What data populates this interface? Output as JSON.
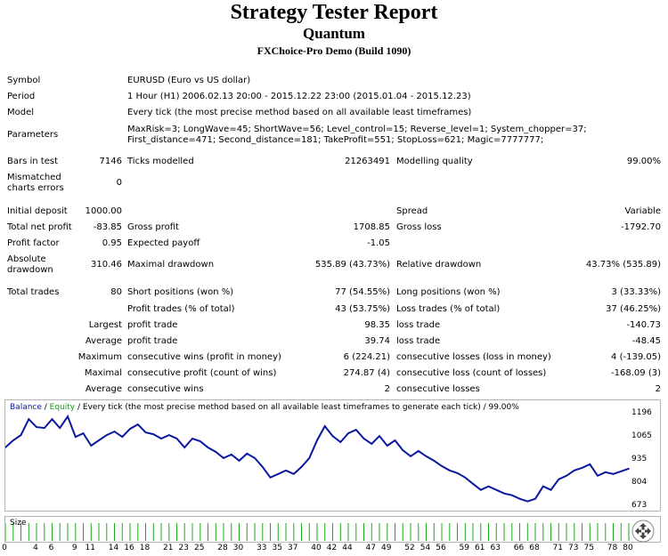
{
  "report": {
    "title": "Strategy Tester Report",
    "expert": "Quantum",
    "server": "FXChoice-Pro Demo (Build 1090)"
  },
  "info": {
    "symbol_label": "Symbol",
    "symbol_value": "EURUSD (Euro vs US dollar)",
    "period_label": "Period",
    "period_value": "1 Hour (H1) 2006.02.13 20:00 - 2015.12.22 23:00 (2015.01.04 - 2015.12.23)",
    "model_label": "Model",
    "model_value": "Every tick (the most precise method based on all available least timeframes)",
    "parameters_label": "Parameters",
    "parameters_value": "MaxRisk=3; LongWave=45; ShortWave=56; Level_control=15; Reverse_level=1; System_chopper=37; First_distance=471; Second_distance=181; TakeProfit=551; StopLoss=621; Magic=7777777;"
  },
  "stats": {
    "bars_label": "Bars in test",
    "bars_value": "7146",
    "ticks_label": "Ticks modelled",
    "ticks_value": "21263491",
    "quality_label": "Modelling quality",
    "quality_value": "99.00%",
    "mismatch_label": "Mismatched charts errors",
    "mismatch_value": "0",
    "deposit_label": "Initial deposit",
    "deposit_value": "1000.00",
    "spread_label": "Spread",
    "spread_value": "Variable",
    "netprofit_label": "Total net profit",
    "netprofit_value": "-83.85",
    "grossprofit_label": "Gross profit",
    "grossprofit_value": "1708.85",
    "grossloss_label": "Gross loss",
    "grossloss_value": "-1792.70",
    "pf_label": "Profit factor",
    "pf_value": "0.95",
    "payoff_label": "Expected payoff",
    "payoff_value": "-1.05",
    "absdd_label": "Absolute drawdown",
    "absdd_value": "310.46",
    "maxdd_label": "Maximal drawdown",
    "maxdd_value": "535.89 (43.73%)",
    "reldd_label": "Relative drawdown",
    "reldd_value": "43.73% (535.89)",
    "trades_label": "Total trades",
    "trades_value": "80",
    "short_label": "Short positions (won %)",
    "short_value": "77 (54.55%)",
    "long_label": "Long positions (won %)",
    "long_value": "3 (33.33%)",
    "profittrades_label": "Profit trades (% of total)",
    "profittrades_value": "43 (53.75%)",
    "losstrades_label": "Loss trades (% of total)",
    "losstrades_value": "37 (46.25%)",
    "largest_label": "Largest",
    "largest_profit_label": "profit trade",
    "largest_profit_value": "98.35",
    "largest_loss_label": "loss trade",
    "largest_loss_value": "-140.73",
    "average_label": "Average",
    "average_profit_label": "profit trade",
    "average_profit_value": "39.74",
    "average_loss_label": "loss trade",
    "average_loss_value": "-48.45",
    "maximum_label": "Maximum",
    "max_wins_label": "consecutive wins (profit in money)",
    "max_wins_value": "6 (224.21)",
    "max_losses_label": "consecutive losses (loss in money)",
    "max_losses_value": "4 (-139.05)",
    "maximal_label": "Maximal",
    "maximal_profit_label": "consecutive profit (count of wins)",
    "maximal_profit_value": "274.87 (4)",
    "maximal_loss_label": "consecutive loss (count of losses)",
    "maximal_loss_value": "-168.09 (3)",
    "avg2_label": "Average",
    "avg_wins_label": "consecutive wins",
    "avg_wins_value": "2",
    "avg_losses_label": "consecutive losses",
    "avg_losses_value": "2"
  },
  "chart": {
    "caption_balance": "Balance",
    "caption_sep": " / ",
    "caption_equity": "Equity",
    "caption_rest": " / Every tick (the most precise method based on all available least timeframes to generate each tick) / 99.00%",
    "size_label": "Size",
    "balance_color": "#0a18a0",
    "equity_color": "#1a9a1a",
    "volume_color": "#22aa22"
  },
  "chart_data": {
    "type": "line",
    "x": [
      0,
      1,
      2,
      3,
      4,
      5,
      6,
      7,
      8,
      9,
      10,
      11,
      12,
      13,
      14,
      15,
      16,
      17,
      18,
      19,
      20,
      21,
      22,
      23,
      24,
      25,
      26,
      27,
      28,
      29,
      30,
      31,
      32,
      33,
      34,
      35,
      36,
      37,
      38,
      39,
      40,
      41,
      42,
      43,
      44,
      45,
      46,
      47,
      48,
      49,
      50,
      51,
      52,
      53,
      54,
      55,
      56,
      57,
      58,
      59,
      60,
      61,
      62,
      63,
      64,
      65,
      66,
      67,
      68,
      69,
      70,
      71,
      72,
      73,
      74,
      75,
      76,
      77,
      78,
      79,
      80
    ],
    "series": [
      {
        "name": "Balance",
        "values": [
          1010,
          1050,
          1080,
          1170,
          1125,
          1120,
          1170,
          1120,
          1185,
          1070,
          1090,
          1020,
          1050,
          1080,
          1100,
          1070,
          1115,
          1140,
          1095,
          1085,
          1060,
          1080,
          1060,
          1010,
          1060,
          1045,
          1010,
          985,
          950,
          970,
          935,
          975,
          950,
          900,
          840,
          860,
          880,
          860,
          900,
          950,
          1050,
          1130,
          1075,
          1040,
          1090,
          1110,
          1060,
          1030,
          1075,
          1020,
          1050,
          995,
          960,
          990,
          960,
          935,
          905,
          880,
          865,
          840,
          805,
          770,
          790,
          770,
          750,
          740,
          720,
          705,
          720,
          790,
          770,
          830,
          850,
          880,
          895,
          915,
          850,
          870,
          860,
          875,
          890
        ]
      }
    ],
    "y_ticks": [
      "1196",
      "1065",
      "935",
      "804",
      "673"
    ],
    "ylim": [
      673,
      1196
    ],
    "x_ticks": [
      "0",
      "4",
      "6",
      "9",
      "11",
      "14",
      "16",
      "18",
      "21",
      "23",
      "25",
      "28",
      "30",
      "33",
      "35",
      "37",
      "40",
      "42",
      "44",
      "47",
      "49",
      "52",
      "54",
      "56",
      "59",
      "61",
      "63",
      "66",
      "68",
      "71",
      "73",
      "75",
      "78",
      "80"
    ],
    "volume_label": "Size",
    "volume": [
      1,
      1,
      1,
      1,
      1,
      1,
      1,
      1,
      1,
      1,
      1,
      1,
      1,
      1,
      1,
      1,
      1,
      1,
      1,
      1,
      1,
      1,
      1,
      1,
      1,
      1,
      1,
      1,
      1,
      1,
      1,
      1,
      1,
      1,
      1,
      1,
      1,
      1,
      1,
      1,
      1,
      1,
      1,
      1,
      1,
      1,
      1,
      1,
      1,
      1,
      1,
      1,
      1,
      1,
      1,
      1,
      1,
      1,
      1,
      1,
      1,
      1,
      1,
      1,
      1,
      1,
      1,
      1,
      1,
      1,
      1,
      1,
      1,
      1,
      1,
      1,
      1,
      1,
      1,
      1,
      1
    ],
    "grid": false
  }
}
